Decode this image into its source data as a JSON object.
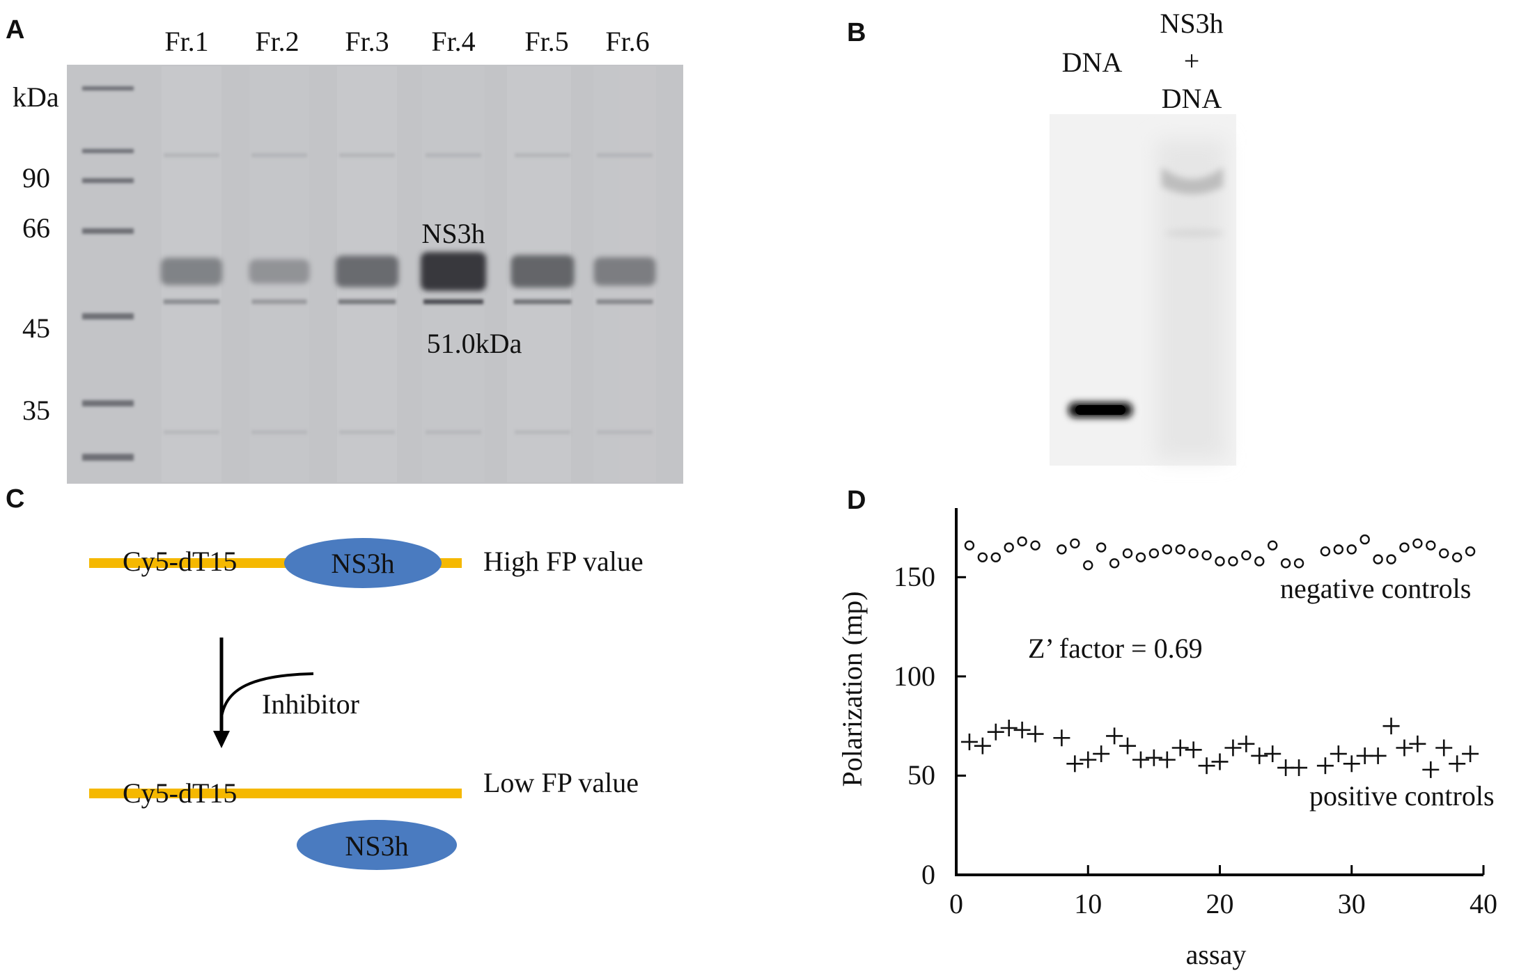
{
  "panel_a": {
    "letter": "A",
    "lanes": [
      "Fr.1",
      "Fr.2",
      "Fr.3",
      "Fr.4",
      "Fr.5",
      "Fr.6"
    ],
    "unit": "kDa",
    "markers": [
      "90",
      "66",
      "45",
      "35"
    ],
    "protein_name": "NS3h",
    "protein_size": "51.0kDa",
    "band_intensity": [
      0.45,
      0.3,
      0.65,
      1.0,
      0.7,
      0.5
    ]
  },
  "panel_b": {
    "letter": "B",
    "lane1": "DNA",
    "lane2_line1": "NS3h",
    "lane2_line2": "+",
    "lane2_line3": "DNA"
  },
  "panel_c": {
    "letter": "C",
    "probe_top": "Cy5-dT15",
    "protein_top": "NS3h",
    "high_label": "High FP value",
    "inhibitor": "Inhibitor",
    "probe_bottom": "Cy5-dT15",
    "protein_bottom": "NS3h",
    "low_label": "Low FP value",
    "colors": {
      "strand": "#F5B800",
      "protein": "#4A7BC0"
    }
  },
  "panel_d": {
    "letter": "D",
    "annotation": "Z’ factor = 0.69",
    "neg_label": "negative controls",
    "pos_label": "positive controls"
  },
  "chart_data": {
    "type": "scatter",
    "xlabel": "assay",
    "ylabel": "Polarization (mp)",
    "xlim": [
      0,
      40
    ],
    "ylim": [
      0,
      175
    ],
    "x_ticks": [
      "0",
      "10",
      "20",
      "30",
      "40"
    ],
    "y_ticks": [
      "0",
      "50",
      "100",
      "150"
    ],
    "grid": false,
    "series": [
      {
        "name": "negative controls",
        "marker": "circle",
        "x": [
          1,
          2,
          3,
          4,
          5,
          6,
          8,
          9,
          10,
          11,
          12,
          13,
          14,
          15,
          16,
          17,
          18,
          19,
          20,
          21,
          22,
          23,
          24,
          25,
          26,
          28,
          29,
          30,
          31,
          32,
          33,
          34,
          35,
          36,
          37,
          38,
          39
        ],
        "y": [
          166,
          160,
          160,
          165,
          168,
          166,
          164,
          167,
          156,
          165,
          157,
          162,
          160,
          162,
          164,
          164,
          162,
          161,
          158,
          158,
          161,
          158,
          166,
          157,
          157,
          163,
          164,
          164,
          169,
          159,
          159,
          165,
          167,
          166,
          162,
          160,
          163
        ]
      },
      {
        "name": "positive controls",
        "marker": "plus",
        "x": [
          1,
          2,
          3,
          4,
          5,
          6,
          8,
          9,
          10,
          11,
          12,
          13,
          14,
          15,
          16,
          17,
          18,
          19,
          20,
          21,
          22,
          23,
          24,
          25,
          26,
          28,
          29,
          30,
          31,
          32,
          33,
          34,
          35,
          36,
          37,
          38,
          39
        ],
        "y": [
          67,
          65,
          72,
          74,
          73,
          71,
          69,
          56,
          58,
          61,
          70,
          65,
          58,
          59,
          58,
          64,
          63,
          55,
          57,
          64,
          66,
          60,
          61,
          54,
          54,
          55,
          61,
          56,
          60,
          60,
          75,
          64,
          66,
          53,
          64,
          56,
          61
        ]
      }
    ]
  }
}
